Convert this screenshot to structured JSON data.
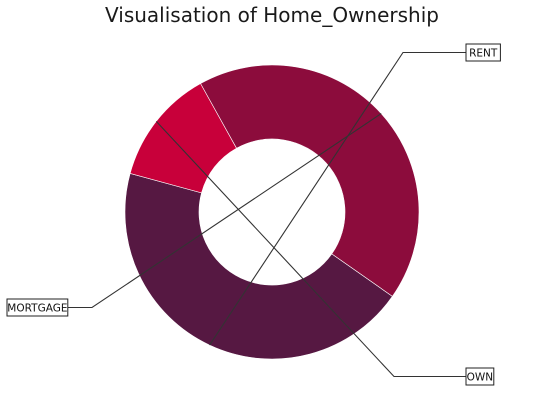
{
  "chart_data": {
    "type": "pie",
    "style": "donut",
    "title": "Visualisation of Home_Ownership",
    "categories": [
      "RENT",
      "OWN",
      "MORTGAGE"
    ],
    "values": [
      44.5,
      12.7,
      42.8
    ],
    "colors": [
      "#561842",
      "#c8003a",
      "#8c0c3c"
    ],
    "label_boxes": true,
    "legend": "none"
  }
}
